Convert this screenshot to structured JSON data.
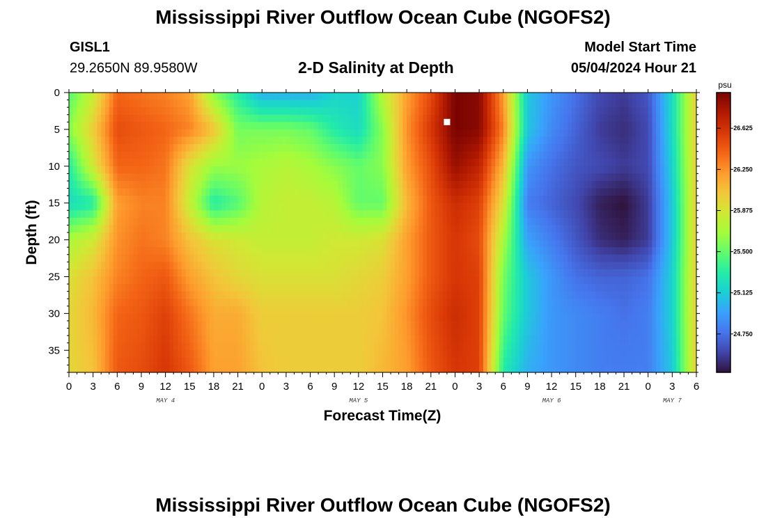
{
  "header": {
    "title": "Mississippi River Outflow Ocean Cube (NGOFS2)",
    "station_id": "GISL1",
    "station_coords": "29.2650N  89.9580W",
    "subtitle": "2-D Salinity at Depth",
    "start_label": "Model Start Time",
    "start_value": "05/04/2024 Hour 21"
  },
  "footer": {
    "title": "Mississippi River Outflow Ocean Cube (NGOFS2)"
  },
  "colors": {
    "colormap": [
      "#30123b",
      "#4145ab",
      "#4675ed",
      "#39a2fc",
      "#1bcfd4",
      "#24eca6",
      "#61fc6c",
      "#a4fc3b",
      "#d1e834",
      "#f3c63a",
      "#fe9b2d",
      "#f36315",
      "#d93806",
      "#b11901",
      "#7a0402"
    ],
    "marker": "#ffffff"
  },
  "chart_data": {
    "type": "heatmap",
    "title": "2-D Salinity at Depth",
    "xlabel": "Forecast Time(Z)",
    "ylabel": "Depth (ft)",
    "units": "psu",
    "xlim": [
      0,
      78
    ],
    "ylim": [
      0,
      38
    ],
    "y_inverted": true,
    "x_ticks": [
      0,
      3,
      6,
      9,
      12,
      15,
      18,
      21,
      24,
      27,
      30,
      33,
      36,
      39,
      42,
      45,
      48,
      51,
      54,
      57,
      60,
      63,
      66,
      69,
      72,
      75,
      78
    ],
    "x_tick_labels": [
      "0",
      "3",
      "6",
      "9",
      "12",
      "15",
      "18",
      "21",
      "0",
      "3",
      "6",
      "9",
      "12",
      "15",
      "18",
      "21",
      "0",
      "3",
      "6",
      "9",
      "12",
      "15",
      "18",
      "21",
      "0",
      "3",
      "6"
    ],
    "y_ticks": [
      0,
      5,
      10,
      15,
      20,
      25,
      30,
      35
    ],
    "y_tick_labels": [
      "0",
      "5",
      "10",
      "15",
      "20",
      "25",
      "30",
      "35"
    ],
    "date_labels": [
      {
        "label": "MAY 4",
        "x": 12
      },
      {
        "label": "MAY 5",
        "x": 36
      },
      {
        "label": "MAY 6",
        "x": 60
      },
      {
        "label": "MAY 7",
        "x": 75
      }
    ],
    "colorbar": {
      "min": 24.4,
      "max": 26.95,
      "ticks": [
        24.75,
        25.125,
        25.5,
        25.875,
        26.25,
        26.625
      ],
      "tick_labels": [
        "24.750",
        "25.125",
        "25.500",
        "25.875",
        "26.250",
        "26.625"
      ]
    },
    "marker": {
      "x": 47,
      "depth": 4
    },
    "depths": [
      0,
      5,
      10,
      15,
      20,
      25,
      30,
      38
    ],
    "times": [
      0,
      3,
      6,
      9,
      12,
      15,
      18,
      21,
      24,
      27,
      30,
      33,
      36,
      39,
      42,
      45,
      48,
      51,
      54,
      57,
      60,
      63,
      66,
      69,
      72,
      75,
      78
    ],
    "salinity": [
      [
        25.45,
        25.8,
        26.4,
        26.35,
        26.3,
        26.2,
        25.6,
        25.3,
        25.0,
        25.0,
        25.0,
        25.15,
        25.15,
        25.75,
        26.2,
        26.5,
        26.95,
        26.9,
        26.2,
        25.1,
        24.9,
        24.75,
        24.6,
        24.55,
        24.65,
        25.2,
        26.0
      ],
      [
        25.6,
        26.0,
        26.5,
        26.45,
        26.4,
        26.3,
        26.05,
        25.55,
        25.55,
        25.55,
        25.5,
        25.3,
        25.2,
        25.6,
        26.25,
        26.6,
        26.95,
        26.9,
        26.3,
        25.1,
        24.85,
        24.7,
        24.55,
        24.5,
        24.6,
        25.2,
        26.0
      ],
      [
        25.3,
        25.85,
        26.4,
        26.4,
        26.35,
        25.9,
        25.65,
        25.65,
        25.7,
        25.75,
        25.7,
        25.6,
        25.5,
        25.6,
        26.2,
        26.5,
        26.85,
        26.7,
        26.1,
        24.9,
        24.75,
        24.65,
        24.6,
        24.55,
        24.6,
        25.15,
        26.0
      ],
      [
        25.2,
        25.3,
        26.2,
        26.3,
        26.3,
        25.8,
        25.3,
        25.45,
        25.75,
        25.8,
        25.8,
        25.75,
        25.5,
        25.5,
        26.1,
        26.45,
        26.65,
        26.55,
        25.9,
        24.8,
        24.7,
        24.6,
        24.45,
        24.4,
        24.55,
        25.1,
        26.0
      ],
      [
        25.7,
        25.85,
        26.25,
        26.35,
        26.3,
        26.05,
        25.9,
        25.85,
        25.8,
        25.8,
        25.8,
        25.85,
        25.85,
        25.9,
        26.2,
        26.45,
        26.6,
        26.5,
        25.7,
        24.95,
        24.8,
        24.65,
        24.5,
        24.45,
        24.55,
        25.1,
        26.0
      ],
      [
        25.9,
        26.05,
        26.3,
        26.4,
        26.45,
        26.2,
        26.05,
        25.95,
        25.9,
        25.9,
        25.9,
        25.9,
        25.95,
        26.0,
        26.2,
        26.45,
        26.6,
        26.55,
        25.55,
        25.1,
        24.9,
        24.75,
        24.7,
        24.7,
        24.75,
        25.15,
        26.0
      ],
      [
        25.95,
        26.1,
        26.4,
        26.45,
        26.55,
        26.35,
        26.15,
        26.15,
        26.0,
        26.0,
        26.0,
        26.0,
        26.0,
        26.05,
        26.25,
        26.5,
        26.65,
        26.55,
        25.5,
        25.1,
        24.9,
        24.85,
        24.8,
        24.75,
        24.8,
        25.15,
        26.0
      ],
      [
        25.95,
        26.05,
        26.45,
        26.5,
        26.6,
        26.45,
        26.2,
        26.2,
        26.05,
        26.0,
        26.0,
        26.0,
        26.0,
        26.1,
        26.2,
        26.45,
        26.6,
        26.55,
        25.3,
        25.0,
        24.9,
        24.85,
        24.8,
        24.8,
        24.8,
        25.1,
        26.0
      ]
    ]
  }
}
